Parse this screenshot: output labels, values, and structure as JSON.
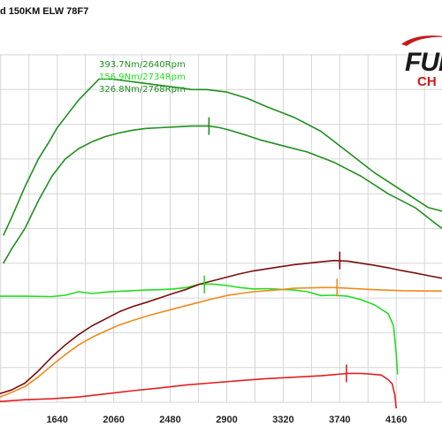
{
  "title": "d 150KM ELW 78F7",
  "logo": {
    "word": "FUI",
    "sub": "CH"
  },
  "colors": {
    "grid": "#d6d6d6",
    "green_dark": "#1f8f1f",
    "green_light": "#22dd22",
    "dark_red": "#7a1010",
    "orange": "#f08a1a",
    "red": "#e02020"
  },
  "chart_data": {
    "type": "line",
    "x_ticks": [
      1640,
      2060,
      2480,
      2900,
      3320,
      3740,
      4160
    ],
    "xlim": [
      1215,
      4500
    ],
    "ylim": [
      0,
      100
    ],
    "legend": [
      {
        "text": "393.7Nm/2640Rpm",
        "color": "#1f8f1f"
      },
      {
        "text": "156.9Nm/2734Rpm",
        "color": "#22dd22"
      },
      {
        "text": "326.8Nm/2768Rpm",
        "color": "#1f8f1f"
      }
    ],
    "series": [
      {
        "id": "torque-tuned",
        "color": "#1f8f1f",
        "points": [
          [
            1240,
            48
          ],
          [
            1300,
            53
          ],
          [
            1400,
            62
          ],
          [
            1500,
            70
          ],
          [
            1580,
            75
          ],
          [
            1640,
            79
          ],
          [
            1700,
            82
          ],
          [
            1800,
            87
          ],
          [
            1900,
            91
          ],
          [
            1950,
            93
          ],
          [
            2050,
            93
          ],
          [
            2150,
            92.5
          ],
          [
            2250,
            92
          ],
          [
            2350,
            91.5
          ],
          [
            2450,
            91
          ],
          [
            2550,
            90.5
          ],
          [
            2640,
            90
          ],
          [
            2750,
            90
          ],
          [
            2900,
            89.3
          ],
          [
            3050,
            87.5
          ],
          [
            3200,
            85
          ],
          [
            3400,
            82
          ],
          [
            3600,
            78
          ],
          [
            3800,
            72
          ],
          [
            4000,
            66
          ],
          [
            4200,
            61
          ],
          [
            4400,
            56
          ],
          [
            4500,
            55
          ]
        ]
      },
      {
        "id": "torque-stock",
        "color": "#1f8f1f",
        "points": [
          [
            1240,
            40
          ],
          [
            1300,
            44
          ],
          [
            1400,
            50
          ],
          [
            1500,
            58
          ],
          [
            1600,
            65
          ],
          [
            1700,
            70
          ],
          [
            1800,
            73
          ],
          [
            1900,
            75
          ],
          [
            2000,
            76.5
          ],
          [
            2100,
            77.5
          ],
          [
            2200,
            78.3
          ],
          [
            2300,
            78.8
          ],
          [
            2400,
            79
          ],
          [
            2500,
            79.2
          ],
          [
            2640,
            79.5
          ],
          [
            2768,
            79.5
          ],
          [
            2850,
            79
          ],
          [
            2950,
            78
          ],
          [
            3050,
            76.8
          ],
          [
            3150,
            75.5
          ],
          [
            3300,
            74
          ],
          [
            3500,
            72
          ],
          [
            3700,
            69
          ],
          [
            3900,
            65
          ],
          [
            4100,
            60
          ],
          [
            4300,
            56
          ],
          [
            4500,
            50
          ]
        ]
      },
      {
        "id": "boost",
        "color": "#22dd22",
        "points": [
          [
            1215,
            30.5
          ],
          [
            1400,
            30.5
          ],
          [
            1600,
            30.4
          ],
          [
            1700,
            30.8
          ],
          [
            1800,
            31.8
          ],
          [
            1900,
            31.3
          ],
          [
            2000,
            31.7
          ],
          [
            2100,
            31.9
          ],
          [
            2200,
            32.1
          ],
          [
            2300,
            32.3
          ],
          [
            2400,
            32.4
          ],
          [
            2500,
            32.6
          ],
          [
            2600,
            33
          ],
          [
            2700,
            34
          ],
          [
            2800,
            34
          ],
          [
            2900,
            33.6
          ],
          [
            3000,
            33
          ],
          [
            3100,
            32.6
          ],
          [
            3200,
            32.7
          ],
          [
            3300,
            32.5
          ],
          [
            3400,
            32.3
          ],
          [
            3500,
            31.8
          ],
          [
            3600,
            30.7
          ],
          [
            3700,
            30.8
          ],
          [
            3800,
            30.5
          ],
          [
            3900,
            29.5
          ],
          [
            4000,
            28
          ],
          [
            4100,
            25.5
          ],
          [
            4140,
            22
          ],
          [
            4160,
            14
          ],
          [
            4170,
            8
          ]
        ]
      },
      {
        "id": "power-tuned",
        "color": "#7a1010",
        "points": [
          [
            1215,
            2.5
          ],
          [
            1300,
            3.5
          ],
          [
            1400,
            5.5
          ],
          [
            1500,
            9
          ],
          [
            1600,
            13
          ],
          [
            1700,
            16.5
          ],
          [
            1800,
            19.5
          ],
          [
            1900,
            22
          ],
          [
            2000,
            24
          ],
          [
            2100,
            26
          ],
          [
            2200,
            27.5
          ],
          [
            2300,
            28.7
          ],
          [
            2400,
            30
          ],
          [
            2500,
            31.3
          ],
          [
            2600,
            32.5
          ],
          [
            2700,
            34
          ],
          [
            2800,
            35
          ],
          [
            2900,
            36
          ],
          [
            3000,
            37
          ],
          [
            3100,
            37.8
          ],
          [
            3200,
            38.4
          ],
          [
            3300,
            39
          ],
          [
            3400,
            39.6
          ],
          [
            3500,
            40
          ],
          [
            3600,
            40.4
          ],
          [
            3700,
            40.8
          ],
          [
            3800,
            40.6
          ],
          [
            3900,
            40
          ],
          [
            4000,
            39.4
          ],
          [
            4100,
            38.7
          ],
          [
            4200,
            37.9
          ],
          [
            4300,
            37.2
          ],
          [
            4400,
            36.4
          ],
          [
            4500,
            35.7
          ]
        ]
      },
      {
        "id": "power-stock",
        "color": "#f08a1a",
        "points": [
          [
            1215,
            1.5
          ],
          [
            1300,
            2.8
          ],
          [
            1400,
            4.5
          ],
          [
            1500,
            7.3
          ],
          [
            1600,
            10.6
          ],
          [
            1700,
            13.7
          ],
          [
            1800,
            16.5
          ],
          [
            1900,
            18.7
          ],
          [
            2000,
            20.5
          ],
          [
            2100,
            22.2
          ],
          [
            2200,
            23.5
          ],
          [
            2300,
            24.7
          ],
          [
            2400,
            25.8
          ],
          [
            2500,
            26.8
          ],
          [
            2600,
            27.8
          ],
          [
            2700,
            28.8
          ],
          [
            2800,
            29.8
          ],
          [
            2900,
            30.7
          ],
          [
            3000,
            31.3
          ],
          [
            3100,
            31.8
          ],
          [
            3200,
            32.1
          ],
          [
            3300,
            32.4
          ],
          [
            3400,
            32.8
          ],
          [
            3500,
            32.9
          ],
          [
            3600,
            33
          ],
          [
            3700,
            33
          ],
          [
            3800,
            32.8
          ],
          [
            3900,
            32.6
          ],
          [
            4000,
            32.4
          ],
          [
            4200,
            32.1
          ],
          [
            4400,
            32
          ],
          [
            4500,
            32
          ]
        ]
      },
      {
        "id": "afr",
        "color": "#e02020",
        "points": [
          [
            1215,
            0.2
          ],
          [
            1400,
            0.7
          ],
          [
            1600,
            1
          ],
          [
            1800,
            1.5
          ],
          [
            2000,
            2.4
          ],
          [
            2200,
            3.3
          ],
          [
            2400,
            4.1
          ],
          [
            2600,
            5
          ],
          [
            2800,
            5.6
          ],
          [
            3000,
            6.2
          ],
          [
            3200,
            6.8
          ],
          [
            3400,
            7.2
          ],
          [
            3600,
            7.6
          ],
          [
            3800,
            8.3
          ],
          [
            3900,
            8.3
          ],
          [
            4000,
            8
          ],
          [
            4050,
            7.8
          ],
          [
            4100,
            6.5
          ],
          [
            4130,
            5.3
          ],
          [
            4150,
            2
          ],
          [
            4160,
            -1.8
          ]
        ]
      }
    ],
    "markers": [
      {
        "series": "torque-stock",
        "x": 2768,
        "y": 79.5
      },
      {
        "series": "boost",
        "x": 2734,
        "y": 33.9
      },
      {
        "series": "power-tuned",
        "x": 3740,
        "y": 40.8
      },
      {
        "series": "power-stock",
        "x": 3720,
        "y": 33
      },
      {
        "series": "afr",
        "x": 3790,
        "y": 8.3
      }
    ]
  }
}
